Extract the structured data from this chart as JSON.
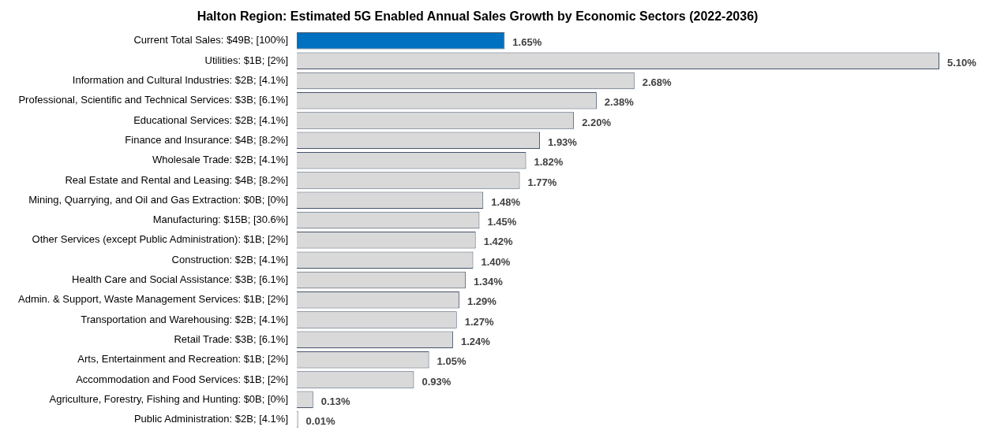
{
  "chart_data": {
    "type": "bar",
    "orientation": "horizontal",
    "title": "Halton Region: Estimated 5G Enabled Annual Sales Growth by Economic Sectors (2022-2036)",
    "categories": [
      "Current Total Sales: $49B; [100%]",
      "Utilities: $1B; [2%]",
      "Information and Cultural Industries: $2B; [4.1%]",
      "Professional, Scientific and Technical Services: $3B; [6.1%]",
      "Educational Services: $2B; [4.1%]",
      "Finance and Insurance: $4B; [8.2%]",
      "Wholesale Trade: $2B; [4.1%]",
      "Real Estate and Rental and Leasing: $4B; [8.2%]",
      "Mining, Quarrying, and Oil and Gas Extraction: $0B; [0%]",
      "Manufacturing: $15B; [30.6%]",
      "Other Services (except Public Administration): $1B; [2%]",
      "Construction: $2B; [4.1%]",
      "Health Care and Social Assistance: $3B; [6.1%]",
      "Admin. & Support, Waste Management Services: $1B; [2%]",
      "Transportation and Warehousing: $2B; [4.1%]",
      "Retail Trade: $3B; [6.1%]",
      "Arts, Entertainment and Recreation: $1B; [2%]",
      "Accommodation and Food Services: $1B; [2%]",
      "Agriculture, Forestry, Fishing and Hunting: $0B; [0%]",
      "Public Administration: $2B; [4.1%]"
    ],
    "values": [
      1.65,
      5.1,
      2.68,
      2.38,
      2.2,
      1.93,
      1.82,
      1.77,
      1.48,
      1.45,
      1.42,
      1.4,
      1.34,
      1.29,
      1.27,
      1.24,
      1.05,
      0.93,
      0.13,
      0.01
    ],
    "value_labels": [
      "1.65%",
      "5.10%",
      "2.68%",
      "2.38%",
      "2.20%",
      "1.93%",
      "1.82%",
      "1.77%",
      "1.48%",
      "1.45%",
      "1.42%",
      "1.40%",
      "1.34%",
      "1.29%",
      "1.27%",
      "1.24%",
      "1.05%",
      "0.93%",
      "0.13%",
      "0.01%"
    ],
    "colors": [
      "#0070c0",
      "#d9d9d9",
      "#d9d9d9",
      "#d9d9d9",
      "#d9d9d9",
      "#d9d9d9",
      "#d9d9d9",
      "#d9d9d9",
      "#d9d9d9",
      "#d9d9d9",
      "#d9d9d9",
      "#d9d9d9",
      "#d9d9d9",
      "#d9d9d9",
      "#d9d9d9",
      "#d9d9d9",
      "#d9d9d9",
      "#d9d9d9",
      "#d9d9d9",
      "#d9d9d9"
    ],
    "tick_labels": "y",
    "grid": false,
    "legend": false
  }
}
